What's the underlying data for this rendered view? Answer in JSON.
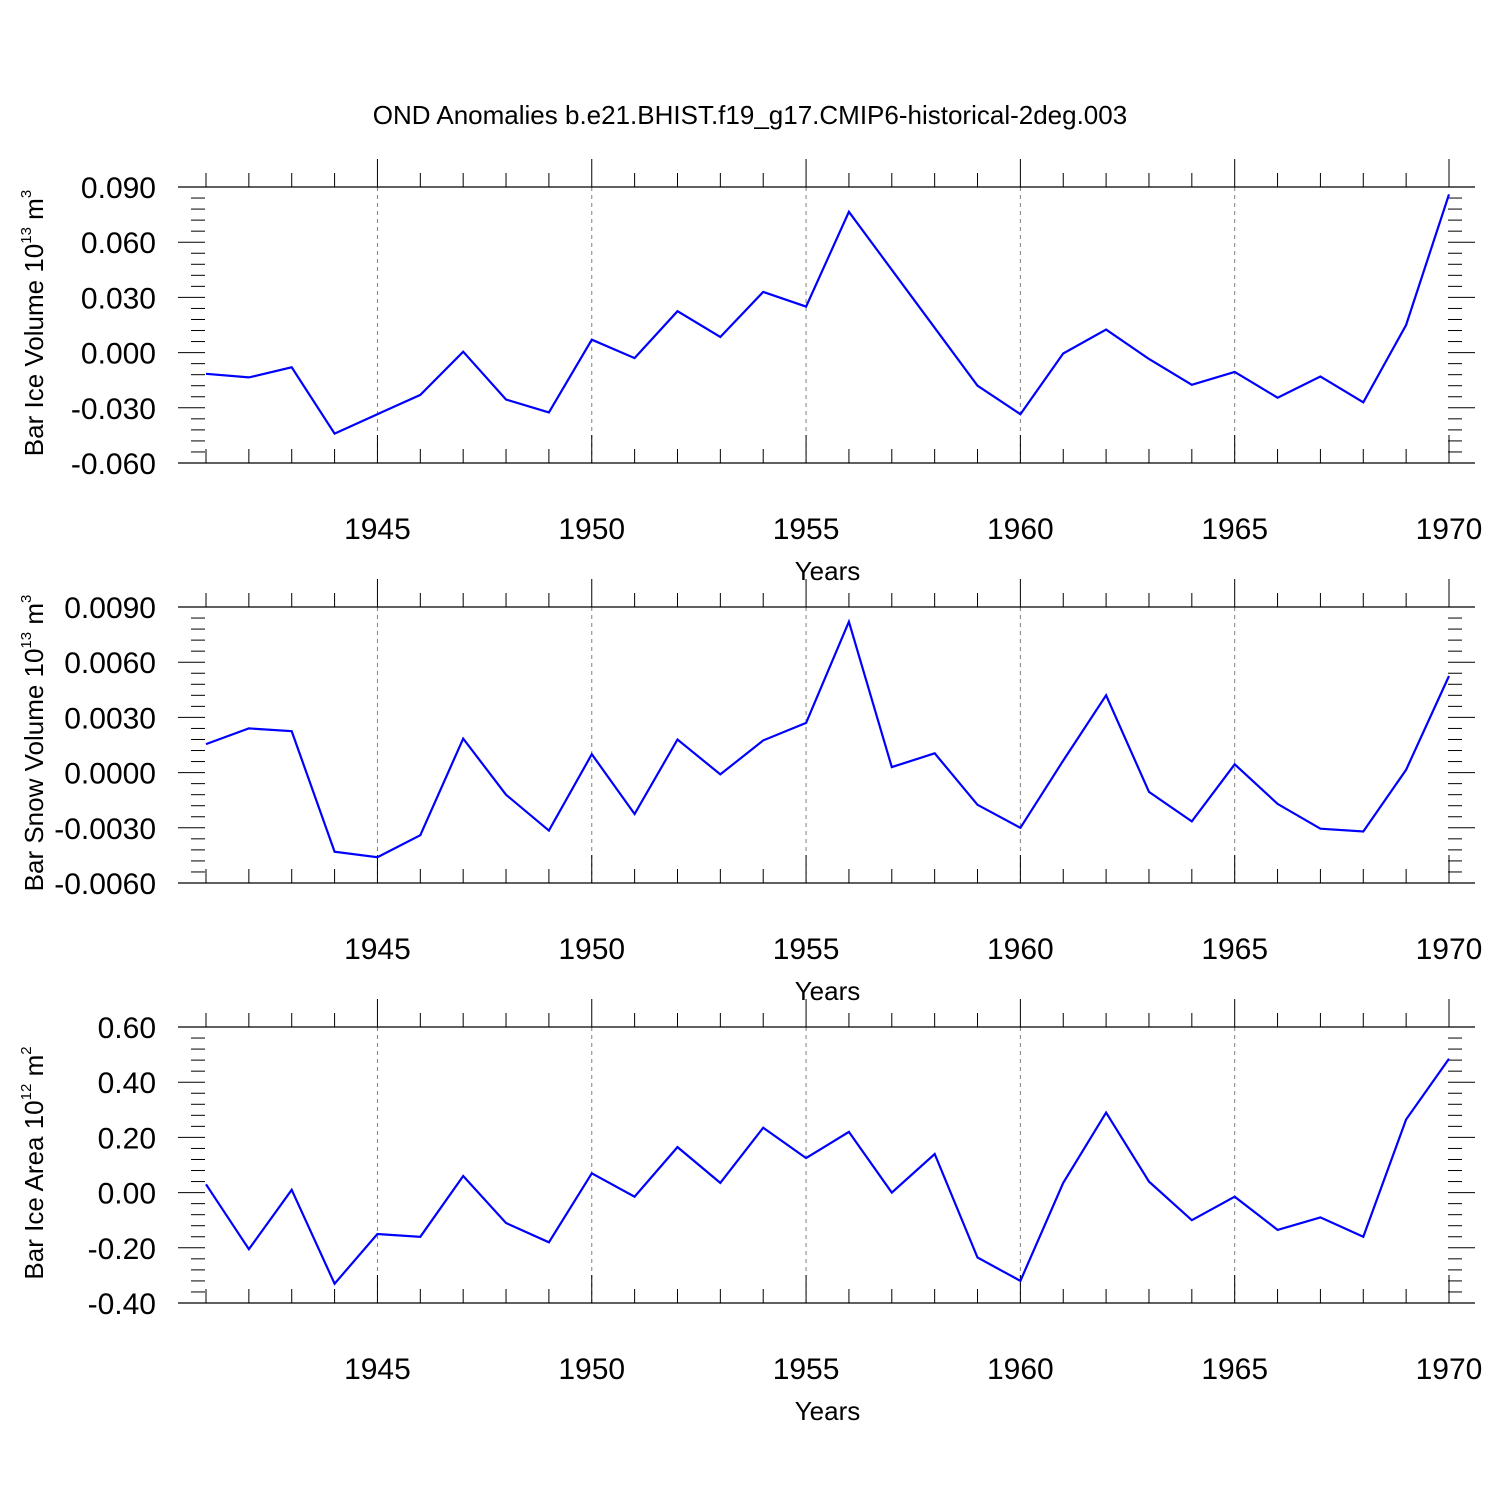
{
  "title": "OND Anomalies b.e21.BHIST.f19_g17.CMIP6-historical-2deg.003",
  "colors": {
    "line": "#0000ff",
    "axis": "#000000",
    "grid": "#808080"
  },
  "chart_data": [
    {
      "type": "line",
      "title": "",
      "xlabel": "Years",
      "ylabel": {
        "prefix": "Bar Ice Volume 10",
        "exp1": "13",
        "mid": " m",
        "exp2": "3"
      },
      "xlim": [
        1941,
        1970
      ],
      "ylim": [
        -0.06,
        0.09
      ],
      "grid": "vertical-dashed",
      "xticks": [
        1945,
        1950,
        1955,
        1960,
        1965,
        1970
      ],
      "xtick_labels": [
        "1945",
        "1950",
        "1955",
        "1960",
        "1965",
        "1970"
      ],
      "yticks": [
        -0.06,
        -0.03,
        0.0,
        0.03,
        0.06,
        0.09
      ],
      "ytick_labels": [
        "-0.060",
        "-0.030",
        "0.000",
        "0.030",
        "0.060",
        "0.090"
      ],
      "x": [
        1941,
        1942,
        1943,
        1944,
        1945,
        1946,
        1947,
        1948,
        1949,
        1950,
        1951,
        1952,
        1953,
        1954,
        1955,
        1956,
        1957,
        1958,
        1959,
        1960,
        1961,
        1962,
        1963,
        1964,
        1965,
        1966,
        1967,
        1968,
        1969,
        1970
      ],
      "series": [
        {
          "values": [
            -0.0115,
            -0.0135,
            -0.008,
            -0.044,
            -0.0335,
            -0.023,
            0.0005,
            -0.0255,
            -0.0325,
            0.007,
            -0.003,
            0.0225,
            0.0085,
            0.033,
            0.025,
            0.0765,
            0.045,
            0.0135,
            -0.018,
            -0.0335,
            -0.0005,
            0.0125,
            -0.0035,
            -0.0175,
            -0.0105,
            -0.0245,
            -0.013,
            -0.027,
            0.015,
            0.086
          ]
        }
      ]
    },
    {
      "type": "line",
      "title": "",
      "xlabel": "Years",
      "ylabel": {
        "prefix": "Bar Snow Volume 10",
        "exp1": "13",
        "mid": " m",
        "exp2": "3"
      },
      "xlim": [
        1941,
        1970
      ],
      "ylim": [
        -0.006,
        0.009
      ],
      "grid": "vertical-dashed",
      "xticks": [
        1945,
        1950,
        1955,
        1960,
        1965,
        1970
      ],
      "xtick_labels": [
        "1945",
        "1950",
        "1955",
        "1960",
        "1965",
        "1970"
      ],
      "yticks": [
        -0.006,
        -0.003,
        0.0,
        0.003,
        0.006,
        0.009
      ],
      "ytick_labels": [
        "-0.0060",
        "-0.0030",
        "0.0000",
        "0.0030",
        "0.0060",
        "0.0090"
      ],
      "x": [
        1941,
        1942,
        1943,
        1944,
        1945,
        1946,
        1947,
        1948,
        1949,
        1950,
        1951,
        1952,
        1953,
        1954,
        1955,
        1956,
        1957,
        1958,
        1959,
        1960,
        1961,
        1962,
        1963,
        1964,
        1965,
        1966,
        1967,
        1968,
        1969,
        1970
      ],
      "series": [
        {
          "values": [
            0.00155,
            0.0024,
            0.00225,
            -0.0043,
            -0.0046,
            -0.0034,
            0.00185,
            -0.0012,
            -0.00315,
            0.001,
            -0.00225,
            0.0018,
            -0.0001,
            0.00175,
            0.0027,
            0.0082,
            0.0003,
            0.00105,
            -0.00175,
            -0.003,
            0.00065,
            0.0042,
            -0.00105,
            -0.00265,
            0.00045,
            -0.0017,
            -0.00305,
            -0.0032,
            0.00015,
            0.00525
          ]
        }
      ]
    },
    {
      "type": "line",
      "title": "",
      "xlabel": "Years",
      "ylabel": {
        "prefix": "Bar Ice Area 10",
        "exp1": "12",
        "mid": " m",
        "exp2": "2"
      },
      "xlim": [
        1941,
        1970
      ],
      "ylim": [
        -0.4,
        0.6
      ],
      "grid": "vertical-dashed",
      "xticks": [
        1945,
        1950,
        1955,
        1960,
        1965,
        1970
      ],
      "xtick_labels": [
        "1945",
        "1950",
        "1955",
        "1960",
        "1965",
        "1970"
      ],
      "yticks": [
        -0.4,
        -0.2,
        0.0,
        0.2,
        0.4,
        0.6
      ],
      "ytick_labels": [
        "-0.40",
        "-0.20",
        "0.00",
        "0.20",
        "0.40",
        "0.60"
      ],
      "x": [
        1941,
        1942,
        1943,
        1944,
        1945,
        1946,
        1947,
        1948,
        1949,
        1950,
        1951,
        1952,
        1953,
        1954,
        1955,
        1956,
        1957,
        1958,
        1959,
        1960,
        1961,
        1962,
        1963,
        1964,
        1965,
        1966,
        1967,
        1968,
        1969,
        1970
      ],
      "series": [
        {
          "values": [
            0.03,
            -0.205,
            0.01,
            -0.33,
            -0.15,
            -0.16,
            0.06,
            -0.11,
            -0.18,
            0.07,
            -0.015,
            0.165,
            0.035,
            0.235,
            0.125,
            0.22,
            0.0,
            0.14,
            -0.235,
            -0.32,
            0.035,
            0.29,
            0.04,
            -0.1,
            -0.015,
            -0.135,
            -0.09,
            -0.16,
            0.265,
            0.485
          ]
        }
      ]
    }
  ]
}
